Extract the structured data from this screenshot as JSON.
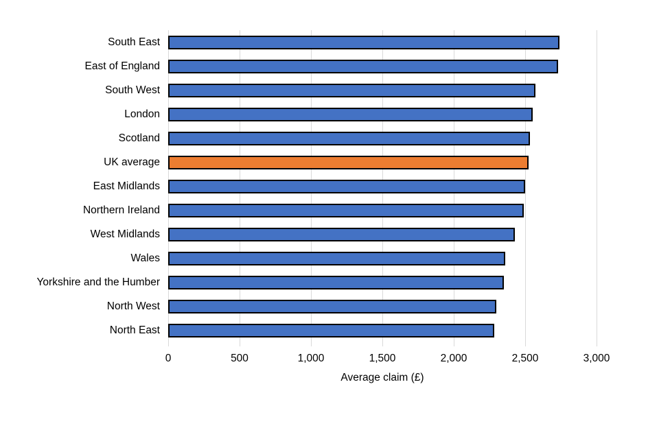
{
  "chart_data": {
    "type": "bar",
    "orientation": "horizontal",
    "title": "",
    "xlabel": "Average claim (£)",
    "ylabel": "",
    "categories": [
      "South East",
      "East of England",
      "South West",
      "London",
      "Scotland",
      "UK average",
      "East Midlands",
      "Northern Ireland",
      "West Midlands",
      "Wales",
      "Yorkshire and the Humber",
      "North West",
      "North East"
    ],
    "values": [
      2740,
      2730,
      2570,
      2555,
      2535,
      2525,
      2500,
      2490,
      2430,
      2360,
      2350,
      2300,
      2285
    ],
    "highlight_category": "UK average",
    "xlim": [
      0,
      3000
    ],
    "xticks": [
      0,
      500,
      1000,
      1500,
      2000,
      2500,
      3000
    ],
    "xtick_labels": [
      "0",
      "500",
      "1,000",
      "1,500",
      "2,000",
      "2,500",
      "3,000"
    ],
    "grid": true,
    "legend": false,
    "colors": {
      "bar": "#4472C4",
      "highlight_bar": "#ED7D31",
      "bar_border": "#000000",
      "gridline": "#D9D9D9",
      "text": "#000000",
      "background": "#FFFFFF"
    }
  }
}
